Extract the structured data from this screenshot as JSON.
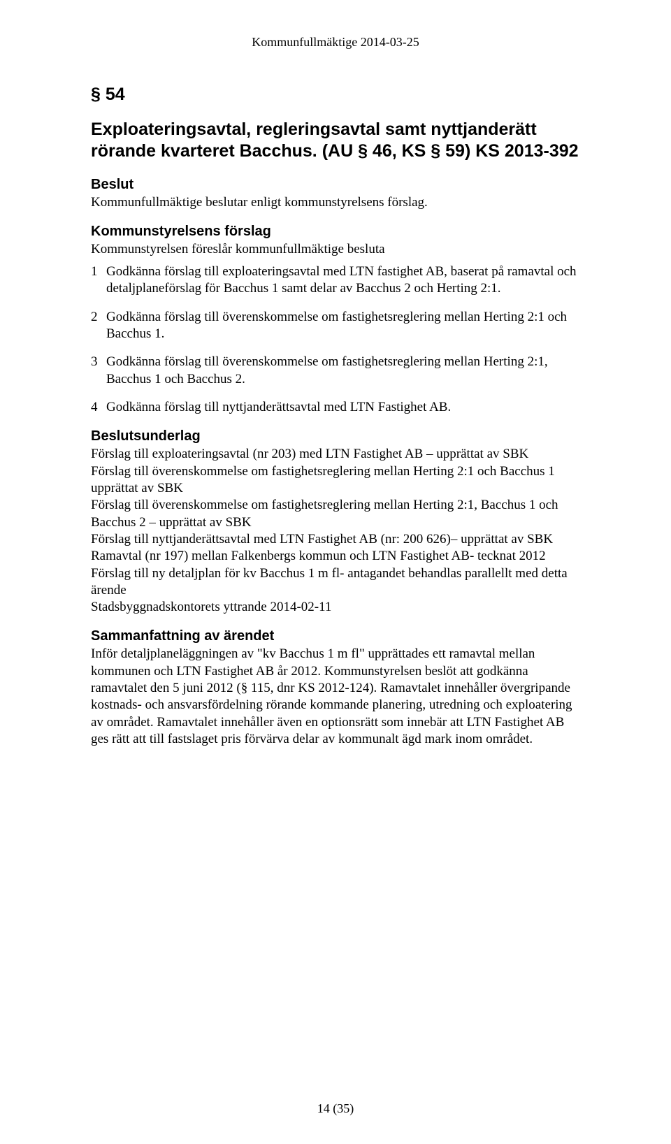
{
  "colors": {
    "text": "#000000",
    "background": "#ffffff"
  },
  "typography": {
    "body_family": "Times New Roman",
    "heading_family": "Arial",
    "body_size_pt": 14,
    "heading_size_pt": 19,
    "subheading_size_pt": 15
  },
  "running_header": "Kommunfullmäktige 2014-03-25",
  "section_number": "§ 54",
  "title": "Exploateringsavtal, regleringsavtal samt nyttjanderätt rörande kvarteret Bacchus. (AU § 46, KS § 59) KS 2013-392",
  "blocks": {
    "beslut": {
      "heading": "Beslut",
      "text": "Kommunfullmäktige beslutar enligt kommunstyrelsens förslag."
    },
    "ks_forslag": {
      "heading": "Kommunstyrelsens förslag",
      "lead": "Kommunstyrelsen föreslår kommunfullmäktige besluta",
      "items": [
        "Godkänna förslag till exploateringsavtal med LTN fastighet AB, baserat på ramavtal och detaljplaneförslag för Bacchus 1 samt delar av Bacchus 2 och Herting 2:1.",
        "Godkänna förslag till överenskommelse om fastighetsreglering mellan Herting 2:1 och Bacchus 1.",
        "Godkänna förslag till överenskommelse om fastighetsreglering mellan Herting 2:1, Bacchus 1 och Bacchus 2.",
        "Godkänna förslag till nyttjanderättsavtal med LTN Fastighet AB."
      ]
    },
    "underlag": {
      "heading": "Beslutsunderlag",
      "lines": [
        "Förslag till exploateringsavtal (nr 203) med LTN Fastighet AB – upprättat av SBK",
        "Förslag till överenskommelse om fastighetsreglering mellan Herting 2:1 och Bacchus 1 upprättat av SBK",
        "Förslag till överenskommelse om fastighetsreglering mellan Herting 2:1, Bacchus 1 och Bacchus 2 – upprättat av SBK",
        "Förslag till nyttjanderättsavtal med LTN Fastighet AB (nr: 200 626)– upprättat av SBK",
        "Ramavtal (nr 197) mellan Falkenbergs kommun och LTN Fastighet AB- tecknat 2012",
        "Förslag till ny detaljplan för kv Bacchus 1 m fl- antagandet behandlas parallellt med detta ärende",
        "Stadsbyggnadskontorets yttrande 2014-02-11"
      ]
    },
    "sammanfattning": {
      "heading": "Sammanfattning av ärendet",
      "text": "Inför detaljplaneläggningen av \"kv Bacchus 1 m fl\" upprättades ett ramavtal mellan kommunen och LTN Fastighet AB år 2012. Kommunstyrelsen beslöt att godkänna ramavtalet den 5 juni 2012 (§ 115, dnr KS 2012-124). Ramavtalet innehåller övergripande kostnads- och ansvarsfördelning rörande kommande planering, utredning och exploatering av området. Ramavtalet innehåller även en optionsrätt som innebär att LTN Fastighet AB ges rätt att till fastslaget pris förvärva delar av kommunalt ägd mark inom området."
    }
  },
  "footer_page": "14 (35)"
}
